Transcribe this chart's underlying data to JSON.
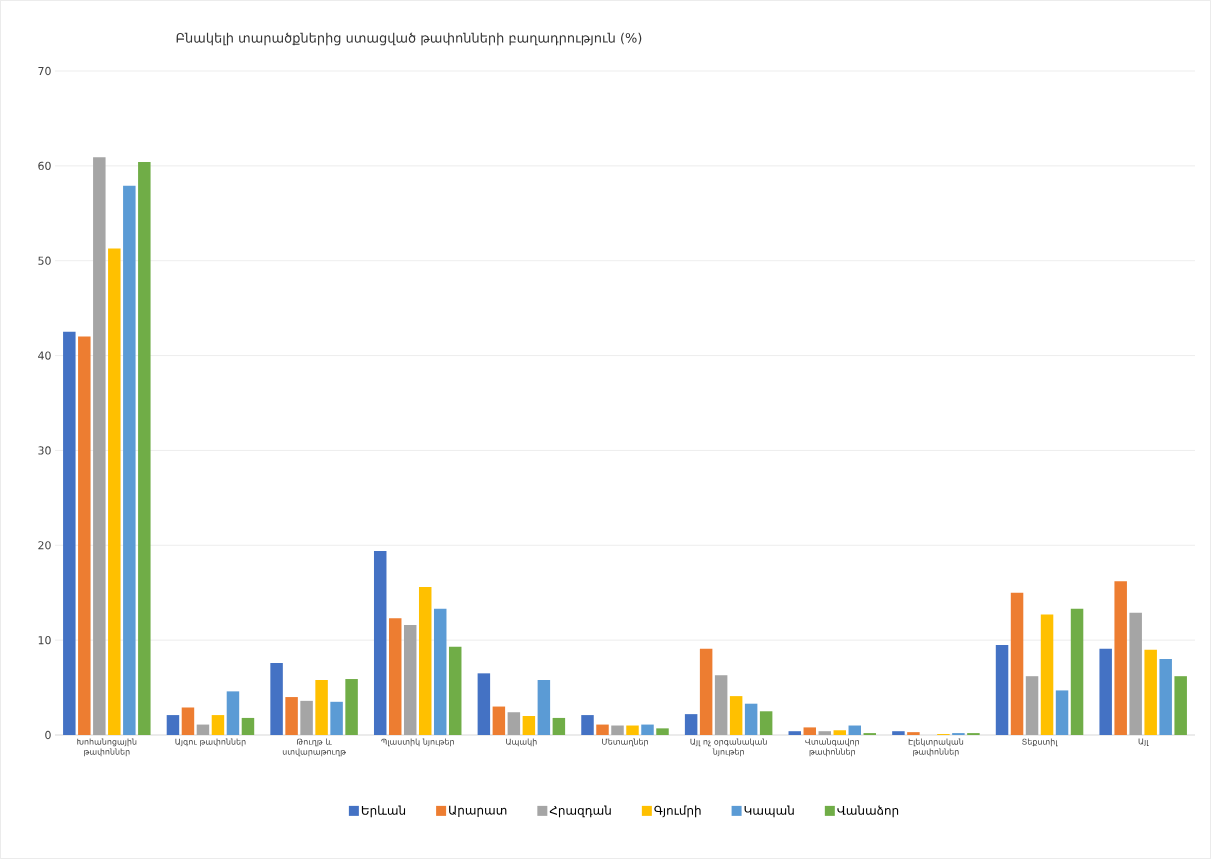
{
  "chart_data": {
    "type": "bar",
    "title": "Բնակելի տարածքներից ստացված թափոնների բաղադրություն   (%)",
    "categories": [
      "Խոհանոցային թափոններ",
      "Այգու թափոններ",
      "Թուղթ և ստվարաթուղթ",
      "Պլաստիկ նյութեր",
      "Ապակի",
      "Մետաղներ",
      "Այլ ոչ օրգանական նյութեր",
      "Վտանգավոր թափոններ",
      "Էլեկտրական թափոններ",
      "Տեքստիլ",
      "Այլ"
    ],
    "series": [
      {
        "name": "Երևան",
        "color": "#4472c4",
        "values": [
          42.5,
          2.1,
          7.6,
          19.4,
          6.5,
          2.1,
          2.2,
          0.4,
          0.4,
          9.5,
          9.1
        ]
      },
      {
        "name": "Արարատ",
        "color": "#ed7d31",
        "values": [
          42.0,
          2.9,
          4.0,
          12.3,
          3.0,
          1.1,
          9.1,
          0.8,
          0.3,
          15.0,
          16.2
        ]
      },
      {
        "name": "Հրազդան",
        "color": "#a5a5a5",
        "values": [
          60.9,
          1.1,
          3.6,
          11.6,
          2.4,
          1.0,
          6.3,
          0.4,
          null,
          6.2,
          12.9
        ]
      },
      {
        "name": "Գյումրի",
        "color": "#ffc000",
        "values": [
          51.3,
          2.1,
          5.8,
          15.6,
          2.0,
          1.0,
          4.1,
          0.5,
          0.1,
          12.7,
          9.0
        ]
      },
      {
        "name": "Կապան",
        "color": "#5b9bd5",
        "values": [
          57.9,
          4.6,
          3.5,
          13.3,
          5.8,
          1.1,
          3.3,
          1.0,
          0.2,
          4.7,
          8.0
        ]
      },
      {
        "name": "Վանաձոր",
        "color": "#70ad47",
        "values": [
          60.4,
          1.8,
          5.9,
          9.3,
          1.8,
          0.7,
          2.5,
          0.2,
          0.2,
          13.3,
          6.2
        ]
      }
    ],
    "ylim": [
      0,
      70
    ],
    "yticks": [
      0,
      10,
      20,
      30,
      40,
      50,
      60,
      70
    ],
    "grid": "y",
    "legend": "bottom"
  }
}
